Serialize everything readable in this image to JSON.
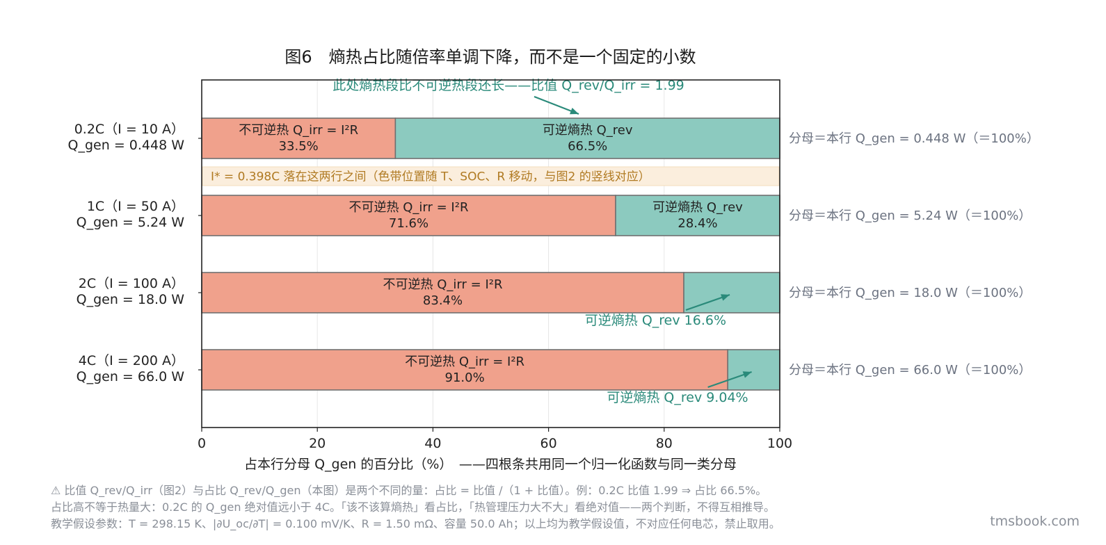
{
  "chart_data": {
    "type": "bar",
    "orientation": "horizontal",
    "stacked": true,
    "title": "图6　熵热占比随倍率单调下降，而不是一个固定的小数",
    "xlabel": "占本行分母 Q_gen 的百分比（%）　——四根条共用同一个归一化函数与同一类分母",
    "xlim": [
      0,
      100
    ],
    "xticks": [
      "0",
      "20",
      "40",
      "60",
      "80",
      "100"
    ],
    "grid": "vertical",
    "colors": {
      "irr": "#f0a18c",
      "rev": "#8ccabf",
      "band_fill": "#fbeedd",
      "annotation": "#2a8a7a",
      "band_text": "#b07a22"
    },
    "rows": [
      {
        "label_line1": "0.2C（I = 10 A）",
        "label_line2": "Q_gen = 0.448 W",
        "irr": 33.5,
        "rev": 66.5,
        "irr_text": "不可逆热 Q_irr = I²R",
        "irr_pct_text": "33.5%",
        "rev_text": "可逆熵热 Q_rev",
        "rev_pct_text": "66.5%",
        "right_note": "分母＝本行 Q_gen = 0.448 W（＝100%）"
      },
      {
        "label_line1": "1C（I = 50 A）",
        "label_line2": "Q_gen = 5.24 W",
        "irr": 71.6,
        "rev": 28.4,
        "irr_text": "不可逆热 Q_irr = I²R",
        "irr_pct_text": "71.6%",
        "rev_text": "可逆熵热 Q_rev",
        "rev_pct_text": "28.4%",
        "right_note": "分母＝本行 Q_gen = 5.24 W（＝100%）"
      },
      {
        "label_line1": "2C（I = 100 A）",
        "label_line2": "Q_gen = 18.0 W",
        "irr": 83.4,
        "rev": 16.6,
        "irr_text": "不可逆热 Q_irr = I²R",
        "irr_pct_text": "83.4%",
        "rev_outside_text": "可逆熵热 Q_rev 16.6%",
        "right_note": "分母＝本行 Q_gen = 18.0 W（＝100%）"
      },
      {
        "label_line1": "4C（I = 200 A）",
        "label_line2": "Q_gen = 66.0 W",
        "irr": 91.0,
        "rev": 9.04,
        "irr_text": "不可逆热 Q_irr = I²R",
        "irr_pct_text": "91.0%",
        "rev_outside_text": "可逆熵热 Q_rev 9.04%",
        "right_note": "分母＝本行 Q_gen = 66.0 W（＝100%）"
      }
    ],
    "top_annotation": "此处熵热段比不可逆热段还长——比值 Q_rev/Q_irr = 1.99",
    "band_text": "I* = 0.398C 落在这两行之间（色带位置随 T、SOC、R 移动，与图2 的竖线对应）"
  },
  "footnotes": [
    "⚠ 比值 Q_rev/Q_irr（图2）与占比 Q_rev/Q_gen（本图）是两个不同的量：占比 = 比值 /（1 + 比值）。例：0.2C 比值 1.99 ⇒ 占比 66.5%。",
    "占比高不等于热量大：0.2C 的 Q_gen 绝对值远小于 4C。「该不该算熵热」看占比，「热管理压力大不大」看绝对值——两个判断，不得互相推导。",
    "教学假设参数：T = 298.15 K、|∂U_oc/∂T| = 0.100 mV/K、R = 1.50 mΩ、容量 50.0 Ah；以上均为教学假设值，不对应任何电芯，禁止取用。"
  ],
  "watermark": "tmsbook.com"
}
